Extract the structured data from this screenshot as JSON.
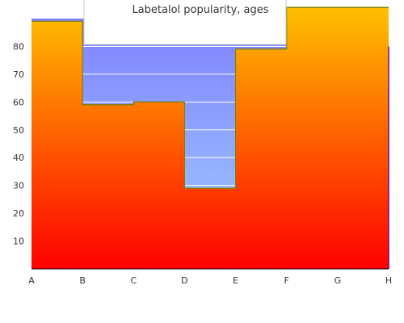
{
  "chart_data": {
    "type": "area",
    "title": "Labetalol popularity, ages",
    "xlabel": "",
    "ylabel": "",
    "categories": [
      "A",
      "B",
      "C",
      "D",
      "E",
      "F",
      "G",
      "H"
    ],
    "values": [
      89,
      59,
      60,
      29,
      79,
      94,
      94,
      80
    ],
    "ylim": [
      0,
      90
    ],
    "yticks": [
      10,
      20,
      30,
      40,
      50,
      60,
      70,
      80
    ],
    "grid": true,
    "legend": "none",
    "step": true
  },
  "colors": {
    "fill_top": "#ffc000",
    "fill_bottom": "#ff0000",
    "background_top": "#8080ff",
    "background_bottom": "#a0d0ff",
    "outline": "#808000",
    "axis": "#000000",
    "title_box_border": "#c8c8c8"
  }
}
